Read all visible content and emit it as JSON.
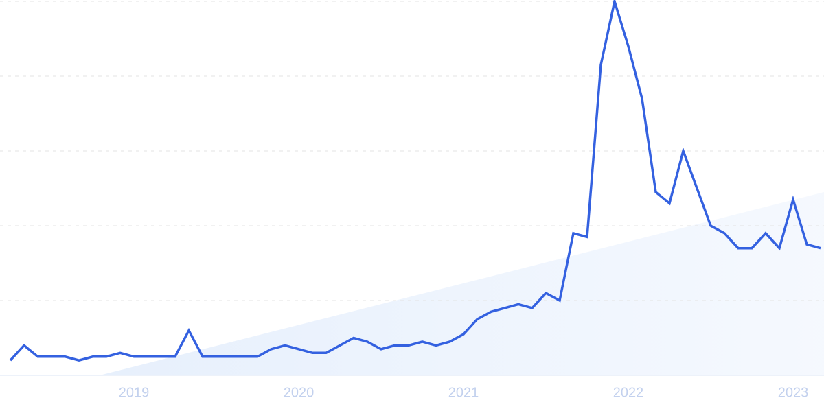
{
  "chart_data": {
    "type": "line",
    "categories": [
      null,
      null,
      null,
      null,
      null,
      null,
      null,
      null,
      null,
      "2019",
      null,
      null,
      null,
      null,
      null,
      null,
      null,
      null,
      null,
      null,
      null,
      "2020",
      null,
      null,
      null,
      null,
      null,
      null,
      null,
      null,
      null,
      null,
      null,
      "2021",
      null,
      null,
      null,
      null,
      null,
      null,
      null,
      null,
      null,
      null,
      null,
      "2022",
      null,
      null,
      null,
      null,
      null,
      null,
      null,
      null,
      null,
      null,
      null,
      "2023",
      null,
      null
    ],
    "series": [
      {
        "color": "#3461e0",
        "values": [
          4,
          8,
          5,
          5,
          5,
          4,
          5,
          5,
          6,
          5,
          5,
          5,
          5,
          12,
          5,
          5,
          5,
          5,
          5,
          7,
          8,
          7,
          6,
          6,
          8,
          10,
          9,
          7,
          8,
          8,
          9,
          8,
          9,
          11,
          15,
          17,
          18,
          19,
          18,
          22,
          20,
          38,
          37,
          83,
          100,
          88,
          74,
          49,
          46,
          60,
          50,
          40,
          38,
          34,
          34,
          38,
          34,
          47,
          35,
          34
        ]
      }
    ],
    "ylim": [
      0,
      100
    ],
    "yticks": [
      0,
      20,
      40,
      60,
      80,
      100
    ],
    "grid": true
  }
}
